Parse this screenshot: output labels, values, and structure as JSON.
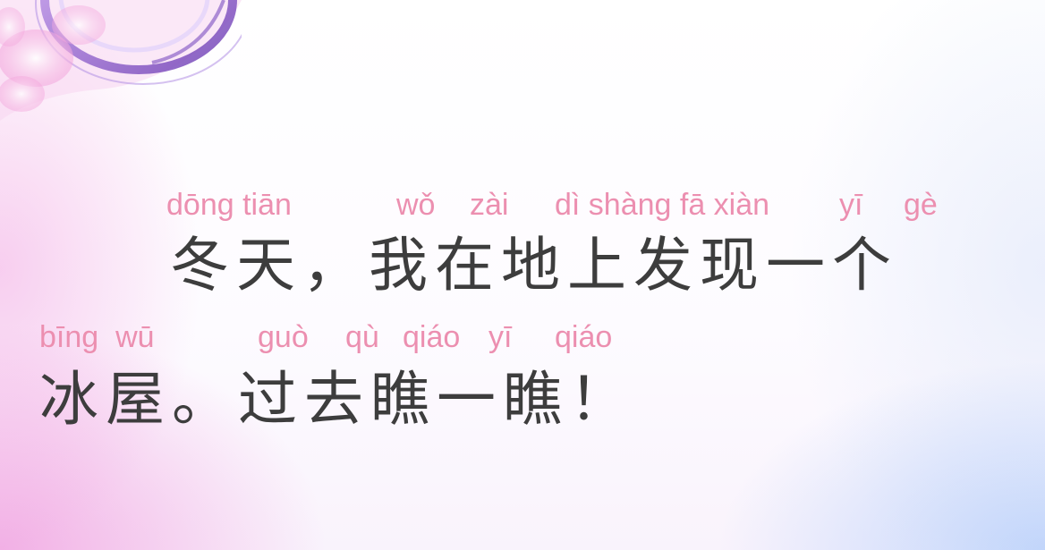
{
  "slide": {
    "line1": {
      "pinyin": {
        "dong_tian": "dōng tiān",
        "wo": "wǒ",
        "zai": "zài",
        "di_shang_fa_xian": "dì shàng fā xiàn",
        "yi": "yī",
        "ge": "gè"
      },
      "hanzi": "冬天，我在地上发现一个"
    },
    "line2": {
      "pinyin": {
        "bing_wu": "bīng  wū",
        "guo": "guò",
        "qu": "qù",
        "qiao_1": "qiáo",
        "yi": "yī",
        "qiao_2": "qiáo"
      },
      "hanzi": "冰屋。过去瞧一瞧！"
    },
    "colors": {
      "pinyin": "#ec8fb0",
      "hanzi": "#3d3d3d",
      "decoration_purple": "#8a5ac8",
      "decoration_pink": "#f0a0d8"
    }
  }
}
